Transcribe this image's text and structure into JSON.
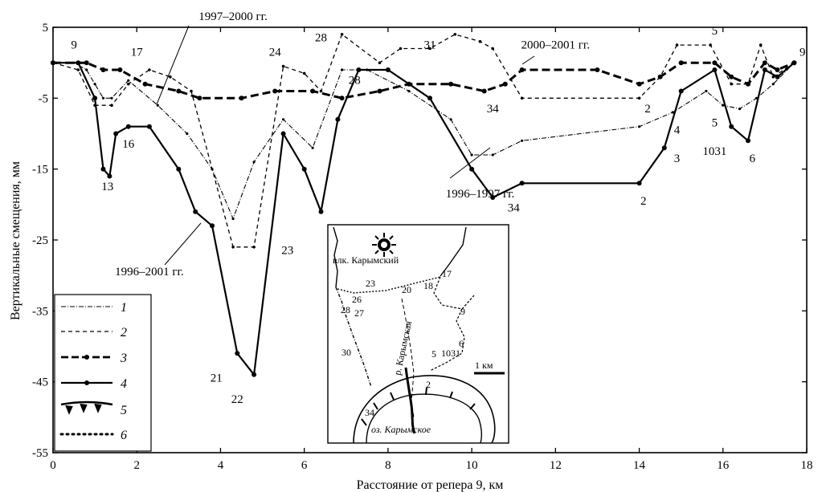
{
  "chart_data": {
    "type": "line",
    "xlabel": "Расстояние от репера 9, км",
    "ylabel": "Вертикальные смещения, мм",
    "xlim": [
      0,
      18
    ],
    "ylim": [
      -55,
      5
    ],
    "xticks": [
      0,
      2,
      4,
      6,
      8,
      10,
      12,
      14,
      16,
      18
    ],
    "yticks": [
      5,
      -5,
      -15,
      -25,
      -35,
      -45,
      -55
    ],
    "grid": false,
    "legend_position": "bottom-left",
    "legend": [
      "1",
      "2",
      "3",
      "4",
      "5",
      "6"
    ],
    "series": [
      {
        "name": "1",
        "period": "1996–1997 гг.",
        "style": "dash-dot-thin",
        "points": [
          [
            0,
            0
          ],
          [
            0.5,
            0
          ],
          [
            0.8,
            -1
          ],
          [
            1.0,
            -3
          ],
          [
            1.2,
            -5
          ],
          [
            1.4,
            -5
          ],
          [
            1.8,
            -2.5
          ],
          [
            2.5,
            -6
          ],
          [
            3.2,
            -10
          ],
          [
            3.8,
            -15
          ],
          [
            4.3,
            -22
          ],
          [
            4.8,
            -14
          ],
          [
            5.5,
            -8
          ],
          [
            6.2,
            -12
          ],
          [
            6.9,
            -1
          ],
          [
            7.5,
            -1
          ],
          [
            8.5,
            -4
          ],
          [
            9.5,
            -8
          ],
          [
            10,
            -13
          ],
          [
            10.5,
            -13
          ],
          [
            11.2,
            -11
          ],
          [
            14,
            -9
          ],
          [
            14.8,
            -7
          ],
          [
            15.6,
            -4
          ],
          [
            16,
            -6
          ],
          [
            16.4,
            -6.5
          ],
          [
            16.8,
            -5
          ],
          [
            17.2,
            -3
          ],
          [
            17.7,
            0
          ]
        ]
      },
      {
        "name": "2",
        "period": "1997–2000 гг.",
        "style": "dashed-thin",
        "points": [
          [
            0,
            0
          ],
          [
            0.6,
            -1
          ],
          [
            1.0,
            -6
          ],
          [
            1.4,
            -6
          ],
          [
            1.8,
            -3
          ],
          [
            2.3,
            -1
          ],
          [
            2.8,
            -2
          ],
          [
            3.3,
            -4
          ],
          [
            4.3,
            -26
          ],
          [
            4.8,
            -26
          ],
          [
            5.5,
            -0.5
          ],
          [
            6.0,
            -1.5
          ],
          [
            6.4,
            -4
          ],
          [
            6.9,
            4
          ],
          [
            7.8,
            0
          ],
          [
            8.3,
            2
          ],
          [
            9.0,
            2
          ],
          [
            9.6,
            4
          ],
          [
            10.2,
            3
          ],
          [
            10.5,
            2
          ],
          [
            11.2,
            -5
          ],
          [
            14,
            -5
          ],
          [
            14.5,
            -2
          ],
          [
            14.9,
            2.5
          ],
          [
            15.7,
            2.5
          ],
          [
            16.2,
            -3
          ],
          [
            16.6,
            -3
          ],
          [
            16.9,
            2.5
          ],
          [
            17.2,
            -2
          ],
          [
            17.7,
            0
          ]
        ]
      },
      {
        "name": "3",
        "period": "2000–2001 гг.",
        "style": "dashed-bold",
        "points": [
          [
            0,
            0
          ],
          [
            0.8,
            0
          ],
          [
            1.2,
            -1
          ],
          [
            1.6,
            -1
          ],
          [
            2.2,
            -3
          ],
          [
            3.0,
            -4
          ],
          [
            3.5,
            -5
          ],
          [
            4.5,
            -5
          ],
          [
            5.3,
            -4
          ],
          [
            6.2,
            -4
          ],
          [
            6.9,
            -5
          ],
          [
            7.8,
            -4
          ],
          [
            8.5,
            -3
          ],
          [
            9.5,
            -3
          ],
          [
            10.3,
            -4
          ],
          [
            10.8,
            -3
          ],
          [
            11.2,
            -1
          ],
          [
            13,
            -1
          ],
          [
            14,
            -3
          ],
          [
            14.5,
            -2
          ],
          [
            15,
            0
          ],
          [
            15.8,
            0
          ],
          [
            16.2,
            -2
          ],
          [
            16.6,
            -3
          ],
          [
            17.0,
            0
          ],
          [
            17.3,
            -1
          ],
          [
            17.7,
            0
          ]
        ]
      },
      {
        "name": "4",
        "period": "1996–2001 гг.",
        "style": "solid-bold",
        "points": [
          [
            0,
            0
          ],
          [
            0.6,
            0
          ],
          [
            1.0,
            -5
          ],
          [
            1.2,
            -15
          ],
          [
            1.35,
            -16
          ],
          [
            1.5,
            -10
          ],
          [
            1.8,
            -9
          ],
          [
            2.3,
            -9
          ],
          [
            3.0,
            -15
          ],
          [
            3.4,
            -21
          ],
          [
            3.8,
            -23
          ],
          [
            4.4,
            -41
          ],
          [
            4.8,
            -44
          ],
          [
            5.5,
            -10
          ],
          [
            6.0,
            -15
          ],
          [
            6.4,
            -21
          ],
          [
            6.8,
            -8
          ],
          [
            7.3,
            -1
          ],
          [
            8.0,
            -1
          ],
          [
            9.0,
            -5
          ],
          [
            10.0,
            -15
          ],
          [
            10.5,
            -19
          ],
          [
            11.2,
            -17
          ],
          [
            14,
            -17
          ],
          [
            14.6,
            -12
          ],
          [
            15.0,
            -4
          ],
          [
            15.8,
            -1
          ],
          [
            16.2,
            -9
          ],
          [
            16.6,
            -11
          ],
          [
            17.0,
            -1
          ],
          [
            17.3,
            -2
          ],
          [
            17.7,
            0
          ]
        ]
      }
    ],
    "annotations": [
      {
        "text": "9",
        "x": 0.5,
        "y": 2
      },
      {
        "text": "17",
        "x": 2.0,
        "y": 1
      },
      {
        "text": "1997–2000 гг.",
        "x": 4.3,
        "y": 6
      },
      {
        "text": "24",
        "x": 5.3,
        "y": 1
      },
      {
        "text": "28",
        "x": 6.4,
        "y": 3
      },
      {
        "text": "31",
        "x": 9.0,
        "y": 2
      },
      {
        "text": "2000–2001 гг.",
        "x": 12.0,
        "y": 2
      },
      {
        "text": "5",
        "x": 15.8,
        "y": 4
      },
      {
        "text": "9",
        "x": 17.9,
        "y": 1
      },
      {
        "text": "28",
        "x": 7.2,
        "y": -3
      },
      {
        "text": "34",
        "x": 10.5,
        "y": -7
      },
      {
        "text": "2",
        "x": 14.2,
        "y": -7
      },
      {
        "text": "4",
        "x": 14.9,
        "y": -10
      },
      {
        "text": "5",
        "x": 15.8,
        "y": -9
      },
      {
        "text": "16",
        "x": 1.8,
        "y": -12
      },
      {
        "text": "1031",
        "x": 15.8,
        "y": -13
      },
      {
        "text": "3",
        "x": 14.9,
        "y": -14
      },
      {
        "text": "6",
        "x": 16.7,
        "y": -14
      },
      {
        "text": "13",
        "x": 1.3,
        "y": -18
      },
      {
        "text": "1996–1997 гг.",
        "x": 10.2,
        "y": -19
      },
      {
        "text": "34",
        "x": 11.0,
        "y": -21
      },
      {
        "text": "2",
        "x": 14.1,
        "y": -20
      },
      {
        "text": "23",
        "x": 5.6,
        "y": -27
      },
      {
        "text": "1996–2001 гг.",
        "x": 2.3,
        "y": -30
      },
      {
        "text": "21",
        "x": 3.9,
        "y": -45
      },
      {
        "text": "22",
        "x": 4.4,
        "y": -48
      }
    ],
    "map_inset": {
      "labels": [
        "влк. Карымский",
        "23",
        "20",
        "18",
        "17",
        "26",
        "28",
        "27",
        "9",
        "р. Карымская",
        "30",
        "1031",
        "6",
        "5",
        "1 км",
        "2",
        "34",
        "оз. Карымское"
      ]
    }
  }
}
